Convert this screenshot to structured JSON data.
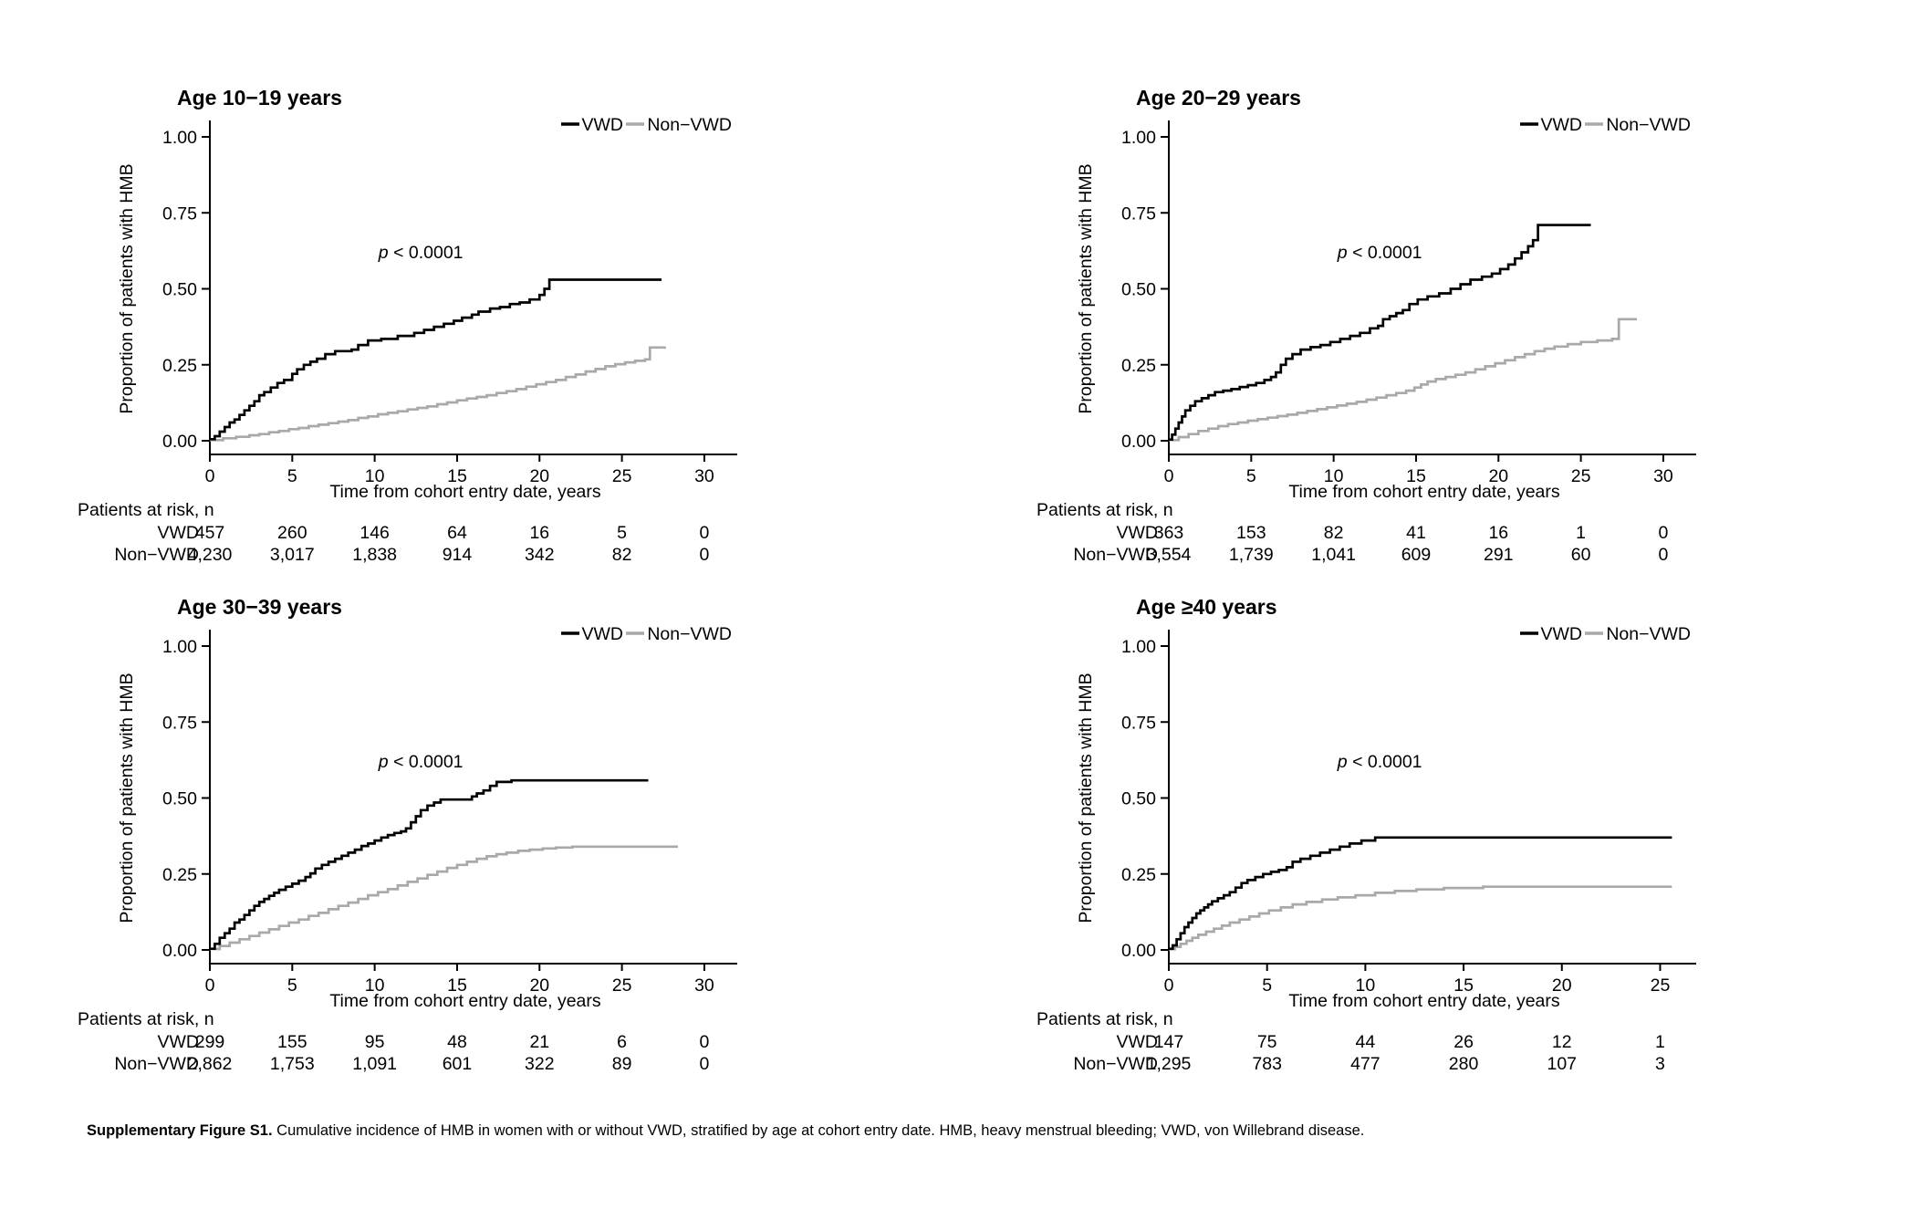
{
  "legend": {
    "vwd_label": "VWD",
    "nonvwd_label": "Non−VWD"
  },
  "colors": {
    "vwd": "#000000",
    "nonvwd": "#a9a9a9"
  },
  "caption": {
    "label": "Supplementary Figure S1.",
    "text": " Cumulative incidence of HMB in women with or without VWD, stratified by age at cohort entry date. HMB, heavy menstrual bleeding; VWD, von Willebrand disease."
  },
  "chart_data": [
    {
      "type": "line",
      "title": "Age 10−19 years",
      "p_label": "p < 0.0001",
      "xlabel": "Time from cohort entry date, years",
      "ylabel": "Proportion of patients with HMB",
      "xlim": [
        0,
        31
      ],
      "ylim": [
        0,
        1.0
      ],
      "xticks": [
        0,
        5,
        10,
        15,
        20,
        25,
        30
      ],
      "yticks": [
        0,
        0.25,
        0.5,
        0.75,
        1.0
      ],
      "ytick_labels": [
        "0.00",
        "0.25",
        "0.50",
        "0.75",
        "1.00"
      ],
      "grid": false,
      "legend_position": "top-right",
      "series": [
        {
          "name": "VWD",
          "color": "#000000",
          "x": [
            0,
            0.3,
            0.6,
            0.9,
            1.2,
            1.5,
            1.8,
            2.1,
            2.4,
            2.7,
            3.0,
            3.3,
            3.7,
            4.1,
            4.5,
            5.0,
            5.3,
            5.7,
            6.1,
            6.5,
            7.0,
            7.6,
            8.6,
            9.0,
            9.6,
            10.4,
            11.4,
            12.4,
            13.0,
            13.6,
            14.2,
            14.8,
            15.3,
            15.9,
            16.3,
            17.0,
            17.6,
            18.2,
            18.8,
            19.4,
            20.0,
            20.3,
            20.6,
            27.4
          ],
          "y": [
            0.005,
            0.015,
            0.03,
            0.045,
            0.06,
            0.07,
            0.085,
            0.1,
            0.115,
            0.13,
            0.15,
            0.16,
            0.175,
            0.19,
            0.2,
            0.22,
            0.235,
            0.25,
            0.26,
            0.27,
            0.285,
            0.295,
            0.3,
            0.315,
            0.33,
            0.335,
            0.345,
            0.355,
            0.365,
            0.375,
            0.385,
            0.395,
            0.405,
            0.415,
            0.425,
            0.435,
            0.44,
            0.45,
            0.455,
            0.465,
            0.48,
            0.5,
            0.53,
            0.53
          ]
        },
        {
          "name": "Non−VWD",
          "color": "#a9a9a9",
          "x": [
            0,
            0.8,
            1.6,
            2.4,
            3.0,
            3.6,
            4.2,
            4.8,
            5.4,
            6.0,
            6.6,
            7.2,
            7.8,
            8.4,
            9.0,
            9.6,
            10.2,
            10.8,
            11.4,
            12.0,
            12.6,
            13.2,
            13.8,
            14.4,
            15.0,
            15.6,
            16.2,
            16.8,
            17.4,
            18.0,
            18.6,
            19.2,
            19.8,
            20.4,
            21.0,
            21.6,
            22.2,
            22.8,
            23.4,
            24.0,
            24.6,
            25.2,
            25.8,
            26.4,
            26.7,
            27.6
          ],
          "y": [
            0.002,
            0.008,
            0.013,
            0.018,
            0.022,
            0.028,
            0.032,
            0.038,
            0.042,
            0.048,
            0.053,
            0.058,
            0.063,
            0.068,
            0.075,
            0.08,
            0.087,
            0.092,
            0.097,
            0.103,
            0.108,
            0.113,
            0.12,
            0.126,
            0.133,
            0.139,
            0.144,
            0.15,
            0.157,
            0.163,
            0.17,
            0.178,
            0.186,
            0.193,
            0.2,
            0.21,
            0.218,
            0.228,
            0.236,
            0.245,
            0.252,
            0.258,
            0.263,
            0.268,
            0.307,
            0.31
          ]
        }
      ],
      "risk_table": {
        "header": "Patients at risk, n",
        "times": [
          0,
          5,
          10,
          15,
          20,
          25,
          30
        ],
        "rows": [
          {
            "label": "VWD",
            "values": [
              "457",
              "260",
              "146",
              "64",
              "16",
              "5",
              "0"
            ]
          },
          {
            "label": "Non−VWD",
            "values": [
              "4,230",
              "3,017",
              "1,838",
              "914",
              "342",
              "82",
              "0"
            ]
          }
        ]
      }
    },
    {
      "type": "line",
      "title": "Age 20−29 years",
      "p_label": "p < 0.0001",
      "xlabel": "Time from cohort entry date, years",
      "ylabel": "Proportion of patients with HMB",
      "xlim": [
        0,
        31
      ],
      "ylim": [
        0,
        1.0
      ],
      "xticks": [
        0,
        5,
        10,
        15,
        20,
        25,
        30
      ],
      "yticks": [
        0,
        0.25,
        0.5,
        0.75,
        1.0
      ],
      "ytick_labels": [
        "0.00",
        "0.25",
        "0.50",
        "0.75",
        "1.00"
      ],
      "grid": false,
      "legend_position": "top-right",
      "series": [
        {
          "name": "VWD",
          "color": "#000000",
          "x": [
            0,
            0.2,
            0.4,
            0.6,
            0.8,
            1.0,
            1.3,
            1.6,
            2.0,
            2.4,
            2.8,
            3.3,
            3.8,
            4.3,
            4.8,
            5.3,
            5.8,
            6.2,
            6.5,
            6.8,
            7.1,
            7.5,
            8.0,
            8.6,
            9.2,
            9.8,
            10.4,
            11.0,
            11.6,
            12.2,
            12.7,
            13.0,
            13.4,
            13.8,
            14.2,
            14.6,
            15.1,
            15.7,
            16.4,
            17.1,
            17.7,
            18.3,
            19.0,
            19.6,
            20.1,
            20.6,
            21.0,
            21.4,
            21.8,
            22.1,
            22.4,
            25.6
          ],
          "y": [
            0.004,
            0.02,
            0.04,
            0.06,
            0.08,
            0.1,
            0.115,
            0.13,
            0.14,
            0.15,
            0.16,
            0.165,
            0.17,
            0.177,
            0.183,
            0.19,
            0.2,
            0.21,
            0.225,
            0.25,
            0.27,
            0.285,
            0.3,
            0.308,
            0.315,
            0.325,
            0.335,
            0.345,
            0.355,
            0.37,
            0.378,
            0.4,
            0.41,
            0.42,
            0.43,
            0.45,
            0.465,
            0.475,
            0.485,
            0.5,
            0.515,
            0.53,
            0.54,
            0.55,
            0.565,
            0.58,
            0.6,
            0.62,
            0.64,
            0.66,
            0.71,
            0.71
          ]
        },
        {
          "name": "Non−VWD",
          "color": "#a9a9a9",
          "x": [
            0,
            0.6,
            1.2,
            1.8,
            2.4,
            3.0,
            3.6,
            4.2,
            4.8,
            5.4,
            6.0,
            6.6,
            7.2,
            7.8,
            8.4,
            9.0,
            9.6,
            10.2,
            10.8,
            11.4,
            12.0,
            12.6,
            13.2,
            13.8,
            14.4,
            14.9,
            15.3,
            15.7,
            16.2,
            16.8,
            17.4,
            18.0,
            18.6,
            19.2,
            19.8,
            20.4,
            21.0,
            21.6,
            22.2,
            22.8,
            23.4,
            24.2,
            25.0,
            26.0,
            26.9,
            27.3,
            28.4
          ],
          "y": [
            0.002,
            0.012,
            0.022,
            0.032,
            0.04,
            0.048,
            0.055,
            0.06,
            0.066,
            0.071,
            0.076,
            0.081,
            0.086,
            0.092,
            0.098,
            0.104,
            0.11,
            0.116,
            0.122,
            0.128,
            0.135,
            0.142,
            0.15,
            0.157,
            0.165,
            0.175,
            0.185,
            0.195,
            0.203,
            0.21,
            0.217,
            0.225,
            0.235,
            0.245,
            0.255,
            0.265,
            0.275,
            0.285,
            0.295,
            0.303,
            0.31,
            0.318,
            0.325,
            0.33,
            0.335,
            0.4,
            0.4
          ]
        }
      ],
      "risk_table": {
        "header": "Patients at risk, n",
        "times": [
          0,
          5,
          10,
          15,
          20,
          25,
          30
        ],
        "rows": [
          {
            "label": "VWD",
            "values": [
              "363",
              "153",
              "82",
              "41",
              "16",
              "1",
              "0"
            ]
          },
          {
            "label": "Non−VWD",
            "values": [
              "3,554",
              "1,739",
              "1,041",
              "609",
              "291",
              "60",
              "0"
            ]
          }
        ]
      }
    },
    {
      "type": "line",
      "title": "Age 30−39 years",
      "p_label": "p < 0.0001",
      "xlabel": "Time from cohort entry date, years",
      "ylabel": "Proportion of patients with HMB",
      "xlim": [
        0,
        31
      ],
      "ylim": [
        0,
        1.0
      ],
      "xticks": [
        0,
        5,
        10,
        15,
        20,
        25,
        30
      ],
      "yticks": [
        0,
        0.25,
        0.5,
        0.75,
        1.0
      ],
      "ytick_labels": [
        "0.00",
        "0.25",
        "0.50",
        "0.75",
        "1.00"
      ],
      "grid": false,
      "legend_position": "top-right",
      "series": [
        {
          "name": "VWD",
          "color": "#000000",
          "x": [
            0,
            0.3,
            0.6,
            0.9,
            1.2,
            1.5,
            1.8,
            2.1,
            2.4,
            2.7,
            3.0,
            3.3,
            3.6,
            3.9,
            4.2,
            4.6,
            5.0,
            5.4,
            5.8,
            6.1,
            6.4,
            6.8,
            7.2,
            7.6,
            8.0,
            8.4,
            8.8,
            9.2,
            9.6,
            10.0,
            10.4,
            10.8,
            11.2,
            11.6,
            11.9,
            12.2,
            12.5,
            12.8,
            13.2,
            13.6,
            14.0,
            15.9,
            16.2,
            16.6,
            17.0,
            17.4,
            18.3,
            26.6
          ],
          "y": [
            0.004,
            0.02,
            0.04,
            0.055,
            0.07,
            0.09,
            0.1,
            0.115,
            0.13,
            0.145,
            0.158,
            0.168,
            0.178,
            0.188,
            0.198,
            0.208,
            0.218,
            0.228,
            0.24,
            0.252,
            0.268,
            0.28,
            0.29,
            0.3,
            0.31,
            0.32,
            0.33,
            0.342,
            0.35,
            0.36,
            0.37,
            0.378,
            0.385,
            0.39,
            0.4,
            0.42,
            0.44,
            0.46,
            0.475,
            0.485,
            0.495,
            0.505,
            0.515,
            0.525,
            0.54,
            0.553,
            0.558,
            0.558
          ]
        },
        {
          "name": "Non−VWD",
          "color": "#a9a9a9",
          "x": [
            0,
            0.6,
            1.2,
            1.8,
            2.4,
            3.0,
            3.6,
            4.2,
            4.8,
            5.4,
            6.0,
            6.6,
            7.2,
            7.8,
            8.4,
            9.0,
            9.6,
            10.2,
            10.8,
            11.4,
            12.0,
            12.6,
            13.2,
            13.8,
            14.4,
            15.0,
            15.6,
            16.2,
            16.8,
            17.4,
            18.0,
            18.7,
            19.4,
            20.2,
            21.0,
            22.0,
            28.4
          ],
          "y": [
            0.003,
            0.013,
            0.024,
            0.035,
            0.046,
            0.057,
            0.068,
            0.079,
            0.09,
            0.1,
            0.112,
            0.122,
            0.134,
            0.145,
            0.156,
            0.168,
            0.18,
            0.19,
            0.2,
            0.212,
            0.224,
            0.235,
            0.247,
            0.258,
            0.27,
            0.28,
            0.29,
            0.3,
            0.308,
            0.315,
            0.32,
            0.326,
            0.33,
            0.334,
            0.337,
            0.34,
            0.34
          ]
        }
      ],
      "risk_table": {
        "header": "Patients at risk, n",
        "times": [
          0,
          5,
          10,
          15,
          20,
          25,
          30
        ],
        "rows": [
          {
            "label": "VWD",
            "values": [
              "299",
              "155",
              "95",
              "48",
              "21",
              "6",
              "0"
            ]
          },
          {
            "label": "Non−VWD",
            "values": [
              "2,862",
              "1,753",
              "1,091",
              "601",
              "322",
              "89",
              "0"
            ]
          }
        ]
      }
    },
    {
      "type": "line",
      "title": "Age ≥40 years",
      "p_label": "p < 0.0001",
      "xlabel": "Time from cohort entry date, years",
      "ylabel": "Proportion of patients with HMB",
      "xlim": [
        0,
        26
      ],
      "ylim": [
        0,
        1.0
      ],
      "xticks": [
        0,
        5,
        10,
        15,
        20,
        25
      ],
      "yticks": [
        0,
        0.25,
        0.5,
        0.75,
        1.0
      ],
      "ytick_labels": [
        "0.00",
        "0.25",
        "0.50",
        "0.75",
        "1.00"
      ],
      "grid": false,
      "legend_position": "top-right",
      "series": [
        {
          "name": "VWD",
          "color": "#000000",
          "x": [
            0,
            0.2,
            0.4,
            0.6,
            0.8,
            1.0,
            1.2,
            1.4,
            1.6,
            1.8,
            2.0,
            2.2,
            2.5,
            2.8,
            3.1,
            3.4,
            3.7,
            4.0,
            4.4,
            4.8,
            5.2,
            5.6,
            6.0,
            6.3,
            6.7,
            7.2,
            7.7,
            8.2,
            8.7,
            9.2,
            9.8,
            10.5,
            25.6
          ],
          "y": [
            0.004,
            0.015,
            0.035,
            0.055,
            0.075,
            0.09,
            0.105,
            0.12,
            0.13,
            0.14,
            0.15,
            0.16,
            0.17,
            0.18,
            0.19,
            0.205,
            0.22,
            0.23,
            0.24,
            0.25,
            0.257,
            0.263,
            0.272,
            0.29,
            0.3,
            0.31,
            0.32,
            0.33,
            0.34,
            0.35,
            0.36,
            0.37,
            0.37
          ]
        },
        {
          "name": "Non−VWD",
          "color": "#a9a9a9",
          "x": [
            0,
            0.3,
            0.6,
            0.9,
            1.2,
            1.5,
            1.9,
            2.3,
            2.7,
            3.1,
            3.6,
            4.1,
            4.6,
            5.1,
            5.7,
            6.3,
            7.0,
            7.8,
            8.6,
            9.5,
            10.5,
            11.5,
            12.6,
            14.0,
            16.0,
            25.6
          ],
          "y": [
            0.002,
            0.01,
            0.02,
            0.03,
            0.04,
            0.05,
            0.06,
            0.07,
            0.08,
            0.09,
            0.1,
            0.11,
            0.12,
            0.13,
            0.14,
            0.15,
            0.158,
            0.166,
            0.173,
            0.18,
            0.188,
            0.194,
            0.199,
            0.204,
            0.208,
            0.208
          ]
        }
      ],
      "risk_table": {
        "header": "Patients at risk, n",
        "times": [
          0,
          5,
          10,
          15,
          20,
          25
        ],
        "rows": [
          {
            "label": "VWD",
            "values": [
              "147",
              "75",
              "44",
              "26",
              "12",
              "1"
            ]
          },
          {
            "label": "Non−VWD",
            "values": [
              "1,295",
              "783",
              "477",
              "280",
              "107",
              "3"
            ]
          }
        ]
      }
    }
  ]
}
